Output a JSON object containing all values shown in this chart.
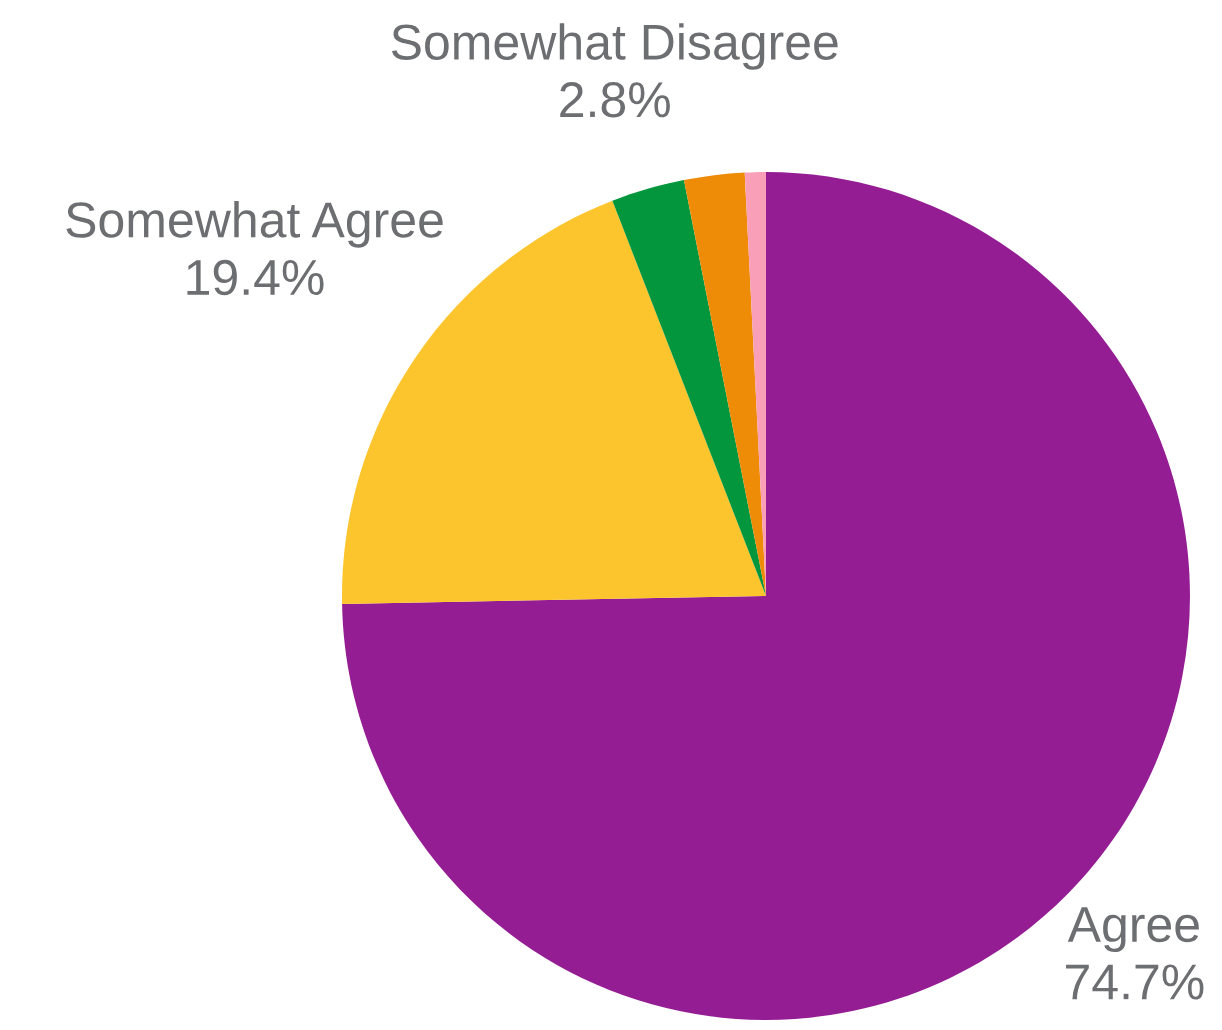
{
  "chart_data": {
    "type": "pie",
    "categories": [
      "Agree",
      "Somewhat Agree",
      "Somewhat Disagree",
      null,
      null
    ],
    "values": [
      74.7,
      19.4,
      2.8,
      2.3,
      0.8
    ],
    "colors": [
      "#951d94",
      "#fdc52d",
      "#03963d",
      "#ee8b07",
      "#f9a0b8"
    ],
    "value_labels": [
      "74.7%",
      "19.4%",
      "2.8%",
      null,
      null
    ]
  }
}
